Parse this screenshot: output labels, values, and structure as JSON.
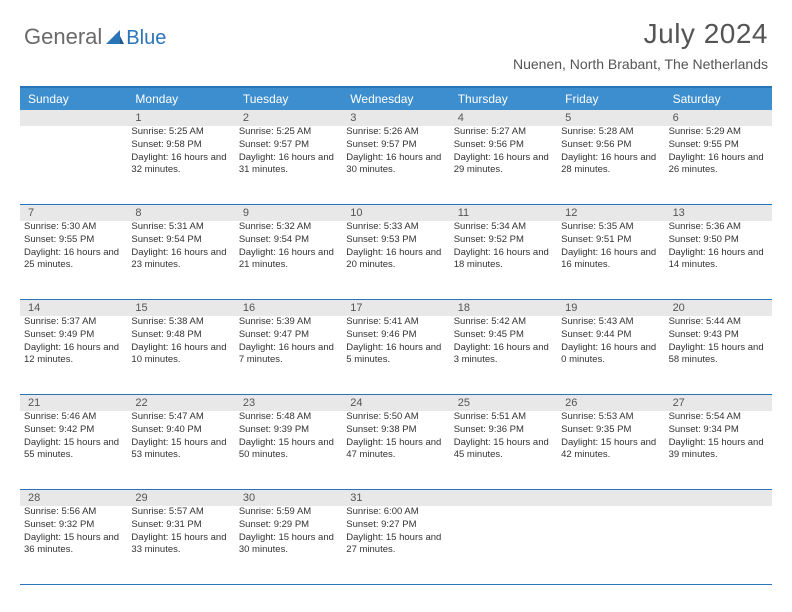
{
  "logo": {
    "general": "General",
    "blue": "Blue"
  },
  "title": "July 2024",
  "location": "Nuenen, North Brabant, The Netherlands",
  "colors": {
    "header_bar": "#3d8ecf",
    "border": "#2a74b8",
    "daynum_bg": "#e8e8e8",
    "text": "#333333",
    "title_text": "#555555",
    "logo_gray": "#6a6a6a",
    "logo_blue": "#2a74b8",
    "background": "#ffffff"
  },
  "day_headers": [
    "Sunday",
    "Monday",
    "Tuesday",
    "Wednesday",
    "Thursday",
    "Friday",
    "Saturday"
  ],
  "weeks": [
    [
      null,
      {
        "n": "1",
        "sr": "5:25 AM",
        "ss": "9:58 PM",
        "dl": "16 hours and 32 minutes."
      },
      {
        "n": "2",
        "sr": "5:25 AM",
        "ss": "9:57 PM",
        "dl": "16 hours and 31 minutes."
      },
      {
        "n": "3",
        "sr": "5:26 AM",
        "ss": "9:57 PM",
        "dl": "16 hours and 30 minutes."
      },
      {
        "n": "4",
        "sr": "5:27 AM",
        "ss": "9:56 PM",
        "dl": "16 hours and 29 minutes."
      },
      {
        "n": "5",
        "sr": "5:28 AM",
        "ss": "9:56 PM",
        "dl": "16 hours and 28 minutes."
      },
      {
        "n": "6",
        "sr": "5:29 AM",
        "ss": "9:55 PM",
        "dl": "16 hours and 26 minutes."
      }
    ],
    [
      {
        "n": "7",
        "sr": "5:30 AM",
        "ss": "9:55 PM",
        "dl": "16 hours and 25 minutes."
      },
      {
        "n": "8",
        "sr": "5:31 AM",
        "ss": "9:54 PM",
        "dl": "16 hours and 23 minutes."
      },
      {
        "n": "9",
        "sr": "5:32 AM",
        "ss": "9:54 PM",
        "dl": "16 hours and 21 minutes."
      },
      {
        "n": "10",
        "sr": "5:33 AM",
        "ss": "9:53 PM",
        "dl": "16 hours and 20 minutes."
      },
      {
        "n": "11",
        "sr": "5:34 AM",
        "ss": "9:52 PM",
        "dl": "16 hours and 18 minutes."
      },
      {
        "n": "12",
        "sr": "5:35 AM",
        "ss": "9:51 PM",
        "dl": "16 hours and 16 minutes."
      },
      {
        "n": "13",
        "sr": "5:36 AM",
        "ss": "9:50 PM",
        "dl": "16 hours and 14 minutes."
      }
    ],
    [
      {
        "n": "14",
        "sr": "5:37 AM",
        "ss": "9:49 PM",
        "dl": "16 hours and 12 minutes."
      },
      {
        "n": "15",
        "sr": "5:38 AM",
        "ss": "9:48 PM",
        "dl": "16 hours and 10 minutes."
      },
      {
        "n": "16",
        "sr": "5:39 AM",
        "ss": "9:47 PM",
        "dl": "16 hours and 7 minutes."
      },
      {
        "n": "17",
        "sr": "5:41 AM",
        "ss": "9:46 PM",
        "dl": "16 hours and 5 minutes."
      },
      {
        "n": "18",
        "sr": "5:42 AM",
        "ss": "9:45 PM",
        "dl": "16 hours and 3 minutes."
      },
      {
        "n": "19",
        "sr": "5:43 AM",
        "ss": "9:44 PM",
        "dl": "16 hours and 0 minutes."
      },
      {
        "n": "20",
        "sr": "5:44 AM",
        "ss": "9:43 PM",
        "dl": "15 hours and 58 minutes."
      }
    ],
    [
      {
        "n": "21",
        "sr": "5:46 AM",
        "ss": "9:42 PM",
        "dl": "15 hours and 55 minutes."
      },
      {
        "n": "22",
        "sr": "5:47 AM",
        "ss": "9:40 PM",
        "dl": "15 hours and 53 minutes."
      },
      {
        "n": "23",
        "sr": "5:48 AM",
        "ss": "9:39 PM",
        "dl": "15 hours and 50 minutes."
      },
      {
        "n": "24",
        "sr": "5:50 AM",
        "ss": "9:38 PM",
        "dl": "15 hours and 47 minutes."
      },
      {
        "n": "25",
        "sr": "5:51 AM",
        "ss": "9:36 PM",
        "dl": "15 hours and 45 minutes."
      },
      {
        "n": "26",
        "sr": "5:53 AM",
        "ss": "9:35 PM",
        "dl": "15 hours and 42 minutes."
      },
      {
        "n": "27",
        "sr": "5:54 AM",
        "ss": "9:34 PM",
        "dl": "15 hours and 39 minutes."
      }
    ],
    [
      {
        "n": "28",
        "sr": "5:56 AM",
        "ss": "9:32 PM",
        "dl": "15 hours and 36 minutes."
      },
      {
        "n": "29",
        "sr": "5:57 AM",
        "ss": "9:31 PM",
        "dl": "15 hours and 33 minutes."
      },
      {
        "n": "30",
        "sr": "5:59 AM",
        "ss": "9:29 PM",
        "dl": "15 hours and 30 minutes."
      },
      {
        "n": "31",
        "sr": "6:00 AM",
        "ss": "9:27 PM",
        "dl": "15 hours and 27 minutes."
      },
      null,
      null,
      null
    ]
  ],
  "labels": {
    "sunrise": "Sunrise: ",
    "sunset": "Sunset: ",
    "daylight": "Daylight: "
  }
}
